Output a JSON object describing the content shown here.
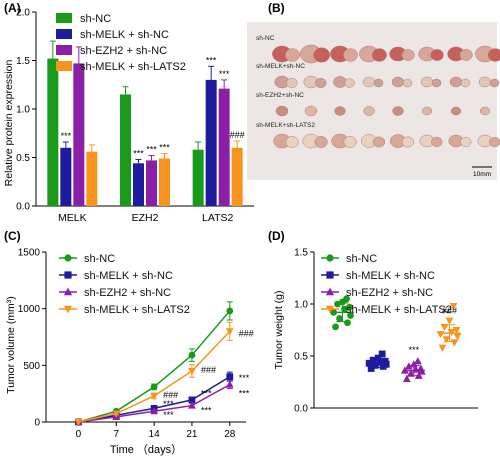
{
  "panel_labels": [
    "(A)",
    "(B)",
    "(C)",
    "(D)"
  ],
  "series_colors": [
    "#1a9a1a",
    "#1c1c9c",
    "#8b1fa8",
    "#f7941d"
  ],
  "photo": {
    "bg": "#ece7e4",
    "row_labels": [
      "sh-NC",
      "sh-MELK+sh-NC",
      "sh-EZH2+sh-NC",
      "sh-MELK+sh-LATS2"
    ],
    "scale_label": "10mm"
  },
  "chart_data": [
    {
      "type": "bar",
      "panel": "A",
      "ylabel": "Relative protein expression",
      "ylim": [
        0,
        2.0
      ],
      "yticks": [
        "0.0",
        "0.5",
        "1.0",
        "1.5",
        "2.0"
      ],
      "categories": [
        "MELK",
        "EZH2",
        "LATS2"
      ],
      "legend": [
        "sh-NC",
        "sh-MELK + sh-NC",
        "sh-EZH2 + sh-NC",
        "sh-MELK + sh-LATS2"
      ],
      "series": [
        {
          "name": "sh-NC",
          "values": [
            1.52,
            1.15,
            0.58
          ],
          "errors": [
            0.18,
            0.08,
            0.08
          ]
        },
        {
          "name": "sh-MELK + sh-NC",
          "values": [
            0.6,
            0.44,
            1.3
          ],
          "errors": [
            0.06,
            0.04,
            0.14
          ]
        },
        {
          "name": "sh-EZH2 + sh-NC",
          "values": [
            1.47,
            0.47,
            1.21
          ],
          "errors": [
            0.17,
            0.05,
            0.09
          ]
        },
        {
          "name": "sh-MELK + sh-LATS2",
          "values": [
            0.56,
            0.49,
            0.6
          ],
          "errors": [
            0.07,
            0.05,
            0.07
          ]
        }
      ],
      "annotations": [
        {
          "category": 0,
          "series": 1,
          "text": "***"
        },
        {
          "category": 1,
          "series": 1,
          "text": "***"
        },
        {
          "category": 1,
          "series": 2,
          "text": "***"
        },
        {
          "category": 1,
          "series": 3,
          "text": "***"
        },
        {
          "category": 2,
          "series": 1,
          "text": "***"
        },
        {
          "category": 2,
          "series": 2,
          "text": "***"
        },
        {
          "category": 2,
          "series": 3,
          "text": "###"
        }
      ]
    },
    {
      "type": "line",
      "panel": "C",
      "xlabel": "Time  （days）",
      "ylabel": "Tumor volume (mm³)",
      "x": [
        0,
        7,
        14,
        21,
        28
      ],
      "xlim": [
        -6,
        31
      ],
      "ylim": [
        0,
        1500
      ],
      "yticks": [
        "0",
        "500",
        "1000",
        "1500"
      ],
      "series": [
        {
          "name": "sh-NC",
          "marker": "circle",
          "values": [
            0,
            95,
            310,
            590,
            980
          ],
          "errors": [
            0,
            12,
            25,
            55,
            80
          ]
        },
        {
          "name": "sh-MELK + sh-NC",
          "marker": "square",
          "values": [
            0,
            60,
            120,
            195,
            400
          ],
          "errors": [
            0,
            8,
            15,
            25,
            40
          ]
        },
        {
          "name": "sh-EZH2 + sh-NC",
          "marker": "triangle-up",
          "values": [
            0,
            45,
            95,
            145,
            330
          ],
          "errors": [
            0,
            8,
            12,
            20,
            35
          ]
        },
        {
          "name": "sh-MELK + sh-LATS2",
          "marker": "triangle-down",
          "values": [
            0,
            75,
            230,
            450,
            800
          ],
          "errors": [
            0,
            12,
            25,
            55,
            80
          ]
        }
      ],
      "annotations": [
        {
          "x": 14,
          "y": 160,
          "text": "***"
        },
        {
          "x": 14,
          "y": 240,
          "text": "###"
        },
        {
          "x": 14,
          "y": 60,
          "text": "***"
        },
        {
          "x": 21,
          "y": 250,
          "text": "***"
        },
        {
          "x": 21,
          "y": 460,
          "text": "###"
        },
        {
          "x": 21,
          "y": 100,
          "text": "***"
        },
        {
          "x": 28,
          "y": 390,
          "text": "***"
        },
        {
          "x": 28,
          "y": 780,
          "text": "###"
        },
        {
          "x": 28,
          "y": 250,
          "text": "***"
        }
      ]
    },
    {
      "type": "scatter",
      "panel": "D",
      "ylabel": "Tumor weight (g)",
      "ylim": [
        0,
        1.5
      ],
      "yticks": [
        "0.0",
        "0.5",
        "1.0",
        "1.5"
      ],
      "groups": [
        {
          "name": "sh-NC",
          "marker": "circle",
          "mean": 0.92,
          "sd": 0.09,
          "points": [
            0.78,
            0.82,
            0.86,
            0.89,
            0.92,
            0.95,
            0.97,
            1.0,
            1.02,
            1.05
          ]
        },
        {
          "name": "sh-MELK + sh-NC",
          "marker": "square",
          "mean": 0.43,
          "sd": 0.04,
          "points": [
            0.38,
            0.4,
            0.41,
            0.42,
            0.43,
            0.44,
            0.45,
            0.46,
            0.48,
            0.52
          ]
        },
        {
          "name": "sh-EZH2 + sh-NC",
          "marker": "triangle-up",
          "mean": 0.36,
          "sd": 0.05,
          "points": [
            0.28,
            0.31,
            0.33,
            0.35,
            0.36,
            0.37,
            0.38,
            0.4,
            0.42,
            0.45
          ]
        },
        {
          "name": "sh-MELK + sh-LATS2",
          "marker": "triangle-down",
          "mean": 0.72,
          "sd": 0.08,
          "points": [
            0.58,
            0.63,
            0.66,
            0.69,
            0.71,
            0.73,
            0.75,
            0.78,
            0.84,
            0.98
          ]
        }
      ],
      "annotations": [
        {
          "group": 2,
          "y": 0.53,
          "text": "***"
        },
        {
          "group": 3,
          "y": 0.91,
          "text": "###"
        }
      ]
    }
  ]
}
